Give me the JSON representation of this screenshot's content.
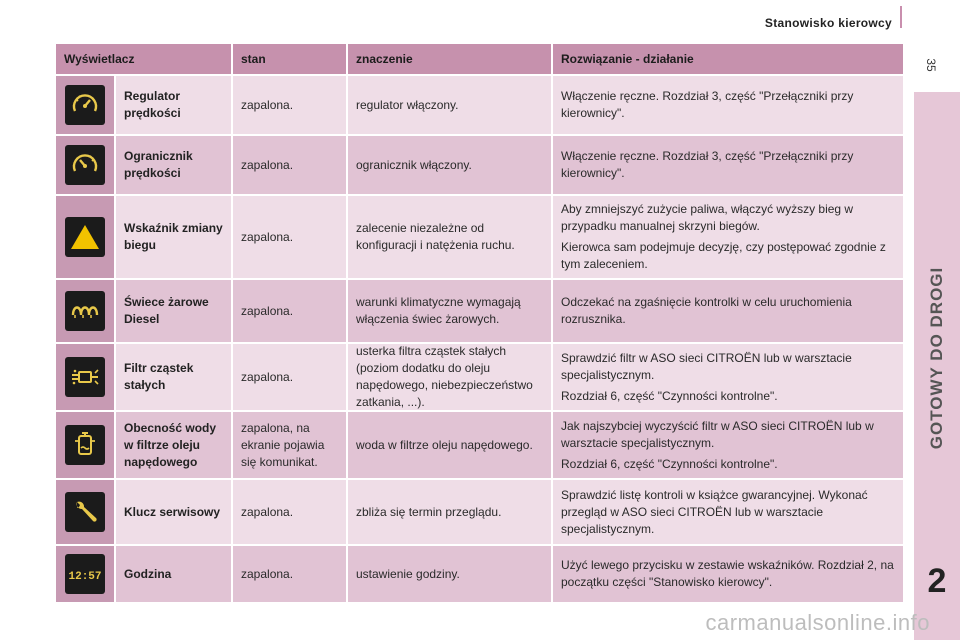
{
  "header": {
    "title": "Stanowisko kierowcy",
    "page_number": "35"
  },
  "side_tab": {
    "label": "GOTOWY DO DROGI",
    "number": "2"
  },
  "table": {
    "headers": [
      "Wyświetlacz",
      "stan",
      "znaczenie",
      "Rozwiązanie - działanie"
    ],
    "rows": [
      {
        "icon": "speed-regulator-icon",
        "name": "Regulator prędkości",
        "state": "zapalona.",
        "meaning": "regulator włączony.",
        "action": [
          "Włączenie ręczne. Rozdział 3, część \"Przełączniki przy kierownicy\"."
        ]
      },
      {
        "icon": "speed-limiter-icon",
        "name": "Ogranicznik prędkości",
        "state": "zapalona.",
        "meaning": "ogranicznik włączony.",
        "action": [
          "Włączenie ręczne. Rozdział 3, część \"Przełączniki przy kierownicy\"."
        ]
      },
      {
        "icon": "gear-shift-warning-icon",
        "name": "Wskaźnik zmiany biegu",
        "state": "zapalona.",
        "meaning": "zalecenie niezależne od konfiguracji i natężenia ruchu.",
        "action": [
          "Aby zmniejszyć zużycie paliwa, włączyć wyższy bieg w przypadku manualnej skrzyni biegów.",
          "Kierowca sam podejmuje decyzję, czy postępować zgodnie z tym zaleceniem."
        ]
      },
      {
        "icon": "glow-plug-icon",
        "name": "Świece żarowe Diesel",
        "state": "zapalona.",
        "meaning": "warunki klimatyczne wymagają włączenia świec żarowych.",
        "action": [
          "Odczekać na zgaśnięcie kontrolki w celu uruchomienia rozrusznika."
        ]
      },
      {
        "icon": "particle-filter-icon",
        "name": "Filtr cząstek stałych",
        "state": "zapalona.",
        "meaning": "usterka filtra cząstek stałych (poziom dodatku do oleju napędowego, niebezpieczeństwo zatkania, ...).",
        "action": [
          "Sprawdzić filtr w ASO sieci CITROËN lub w warsztacie specjalistycznym.",
          "Rozdział 6, część \"Czynności kontrolne\"."
        ]
      },
      {
        "icon": "water-in-diesel-icon",
        "name": "Obecność wody w filtrze oleju napędowego",
        "state": "zapalona, na ekranie pojawia się komunikat.",
        "meaning": "woda w filtrze oleju napędowego.",
        "action": [
          "Jak najszybciej wyczyścić filtr w ASO sieci CITROËN lub w warsztacie specjalistycznym.",
          "Rozdział 6, część \"Czynności kontrolne\"."
        ]
      },
      {
        "icon": "service-wrench-icon",
        "name": "Klucz serwisowy",
        "state": "zapalona.",
        "meaning": "zbliża się termin przeglądu.",
        "action": [
          "Sprawdzić listę kontroli w książce gwarancyjnej. Wykonać przegląd w ASO sieci CITROËN lub w warsztacie specjalistycznym."
        ]
      },
      {
        "icon": "clock-display-icon",
        "name": "Godzina",
        "state": "zapalona.",
        "meaning": "ustawienie godziny.",
        "action": [
          "Użyć lewego przycisku w zestawie wskaźników. Rozdział 2, na początku części \"Stanowisko kierowcy\"."
        ]
      }
    ]
  },
  "clock_icon_digits": "12:57",
  "watermark": "carmanualsonline.info",
  "colors": {
    "header_bg": "#c691ad",
    "row_light": "#efdde7",
    "row_dark": "#e1c3d4",
    "icon_bg": "#1b1b1b",
    "warning_yellow": "#f2c200"
  }
}
